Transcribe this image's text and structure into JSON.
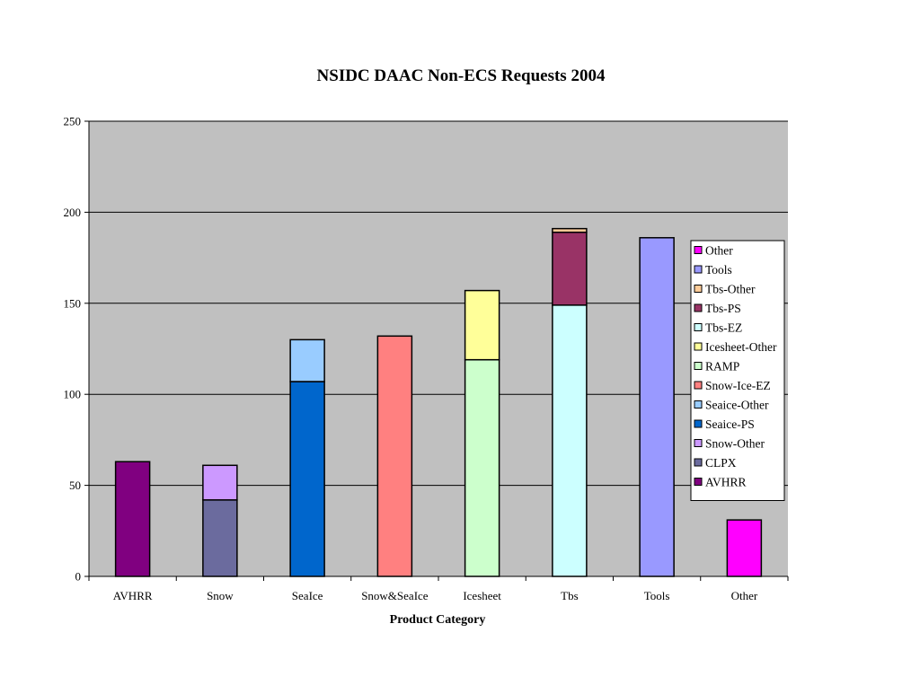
{
  "chart_data": {
    "type": "bar",
    "stacked": true,
    "title": "NSIDC DAAC Non-ECS Requests 2004",
    "xlabel": "Product Category",
    "ylabel": "",
    "ylim": [
      0,
      250
    ],
    "yticks": [
      0,
      50,
      100,
      150,
      200,
      250
    ],
    "grid": true,
    "legend_position": "right",
    "categories": [
      "AVHRR",
      "Snow",
      "SeaIce",
      "Snow&SeaIce",
      "Icesheet",
      "Tbs",
      "Tools",
      "Other"
    ],
    "series": [
      {
        "name": "AVHRR",
        "color": "#800080",
        "values": [
          63,
          0,
          0,
          0,
          0,
          0,
          0,
          0
        ]
      },
      {
        "name": "CLPX",
        "color": "#6b6b9e",
        "values": [
          0,
          42,
          0,
          0,
          0,
          0,
          0,
          0
        ]
      },
      {
        "name": "Snow-Other",
        "color": "#cc99ff",
        "values": [
          0,
          19,
          0,
          0,
          0,
          0,
          0,
          0
        ]
      },
      {
        "name": "Seaice-PS",
        "color": "#0066cc",
        "values": [
          0,
          0,
          107,
          0,
          0,
          0,
          0,
          0
        ]
      },
      {
        "name": "Seaice-Other",
        "color": "#99ccff",
        "values": [
          0,
          0,
          23,
          0,
          0,
          0,
          0,
          0
        ]
      },
      {
        "name": "Snow-Ice-EZ",
        "color": "#ff8080",
        "values": [
          0,
          0,
          0,
          132,
          0,
          0,
          0,
          0
        ]
      },
      {
        "name": "RAMP",
        "color": "#ccffcc",
        "values": [
          0,
          0,
          0,
          0,
          119,
          0,
          0,
          0
        ]
      },
      {
        "name": "Icesheet-Other",
        "color": "#ffff99",
        "values": [
          0,
          0,
          0,
          0,
          38,
          0,
          0,
          0
        ]
      },
      {
        "name": "Tbs-EZ",
        "color": "#ccffff",
        "values": [
          0,
          0,
          0,
          0,
          0,
          149,
          0,
          0
        ]
      },
      {
        "name": "Tbs-PS",
        "color": "#993366",
        "values": [
          0,
          0,
          0,
          0,
          0,
          40,
          0,
          0
        ]
      },
      {
        "name": "Tbs-Other",
        "color": "#ffcc99",
        "values": [
          0,
          0,
          0,
          0,
          0,
          2,
          0,
          0
        ]
      },
      {
        "name": "Tools",
        "color": "#9999ff",
        "values": [
          0,
          0,
          0,
          0,
          0,
          0,
          186,
          0
        ]
      },
      {
        "name": "Other",
        "color": "#ff00ff",
        "values": [
          0,
          0,
          0,
          0,
          0,
          0,
          0,
          31
        ]
      }
    ],
    "plot_background": "#c0c0c0"
  }
}
